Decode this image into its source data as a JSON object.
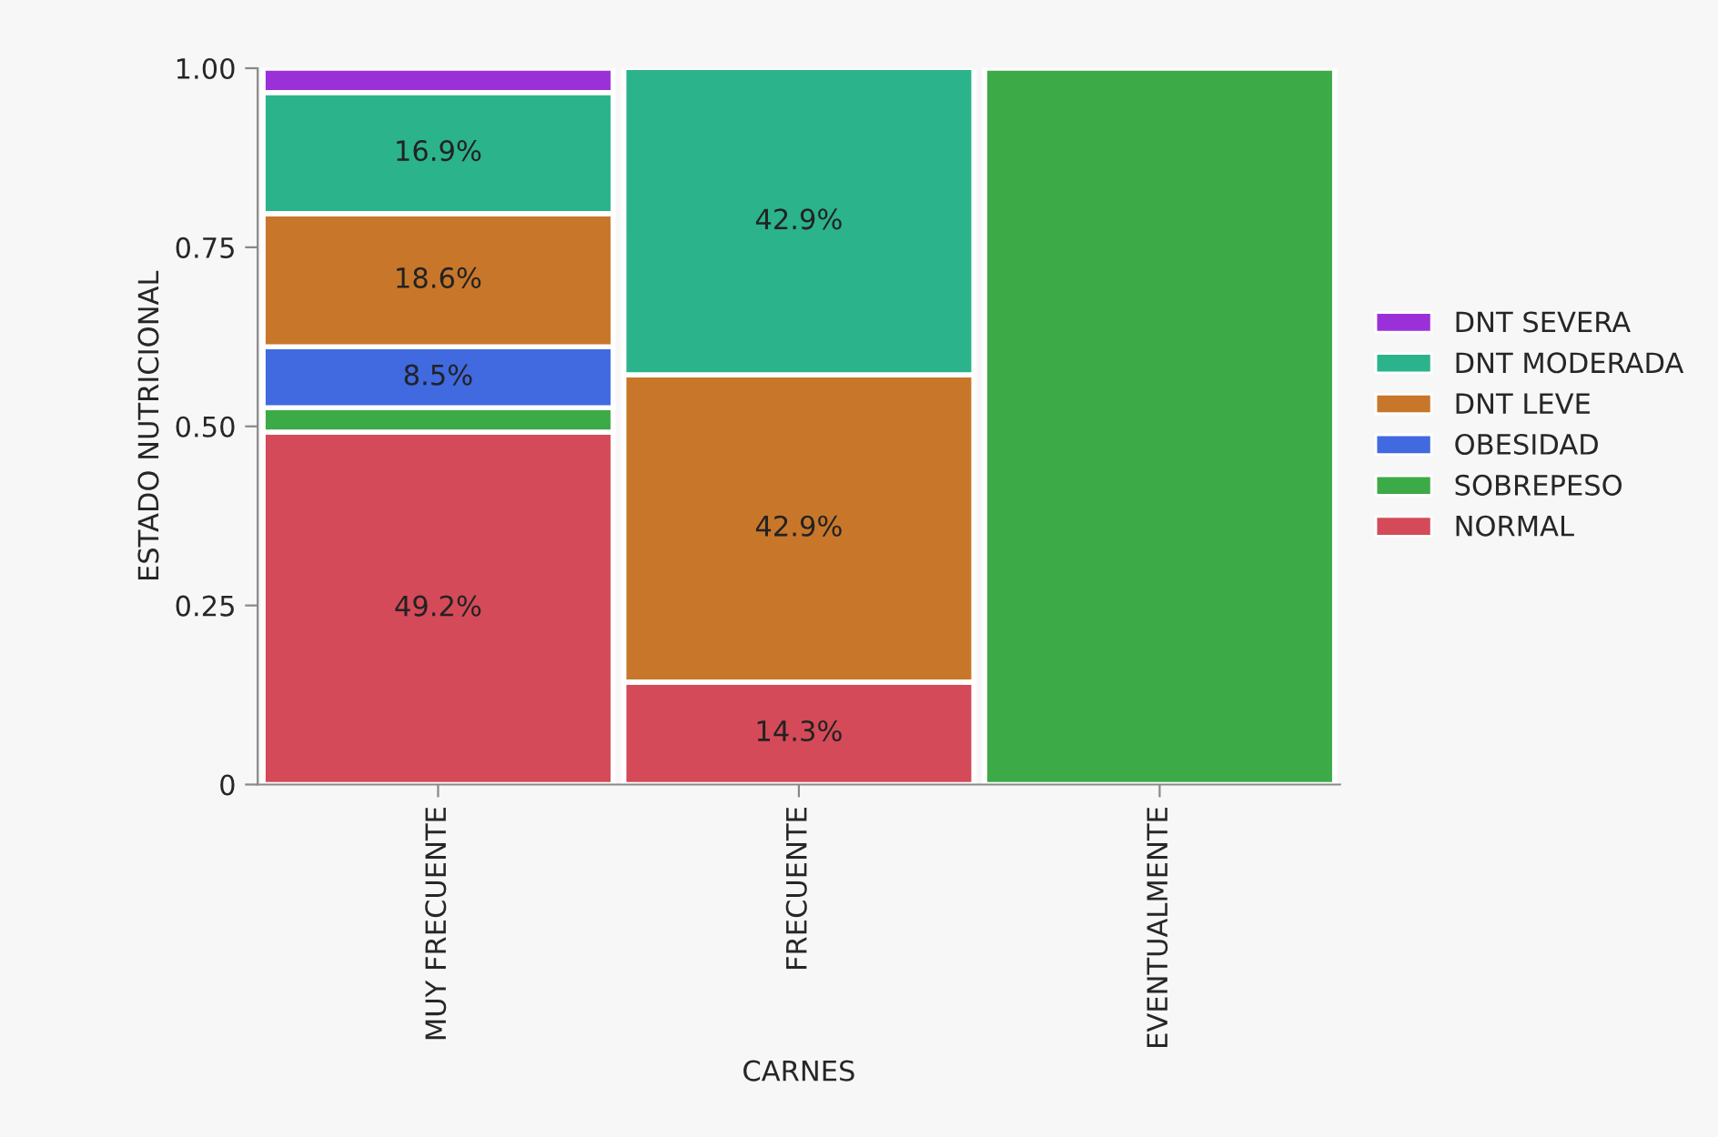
{
  "chart_data": {
    "type": "bar",
    "stacked": true,
    "xlabel": "CARNES",
    "ylabel": "ESTADO NUTRICIONAL",
    "categories": [
      "MUY FRECUENTE",
      "FRECUENTE",
      "EVENTUALMENTE"
    ],
    "series": [
      {
        "name": "NORMAL",
        "color": "#d44a58",
        "values": [
          0.492,
          0.143,
          0
        ],
        "value_labels": [
          "49.2%",
          "14.3%",
          null
        ]
      },
      {
        "name": "SOBREPESO",
        "color": "#3daa48",
        "values": [
          0.034,
          0,
          1
        ],
        "value_labels": [
          null,
          null,
          null
        ]
      },
      {
        "name": "OBESIDAD",
        "color": "#4169e0",
        "values": [
          0.085,
          0,
          0
        ],
        "value_labels": [
          "8.5%",
          null,
          null
        ]
      },
      {
        "name": "DNT LEVE",
        "color": "#c8772a",
        "values": [
          0.186,
          0.429,
          0
        ],
        "value_labels": [
          "18.6%",
          "42.9%",
          null
        ]
      },
      {
        "name": "DNT MODERADA",
        "color": "#2bb38c",
        "values": [
          0.169,
          0.429,
          0
        ],
        "value_labels": [
          "16.9%",
          "42.9%",
          null
        ]
      },
      {
        "name": "DNT SEVERA",
        "color": "#9b30d9",
        "values": [
          0.034,
          0,
          0
        ],
        "value_labels": [
          null,
          null,
          null
        ]
      }
    ],
    "ylim": [
      0,
      1
    ],
    "yticks": [
      0,
      0.25,
      {
        "value": 0.5,
        "label": "0.50"
      },
      0.75,
      {
        "value": 1,
        "label": "1.00"
      }
    ],
    "legend": "right",
    "grid": false
  }
}
